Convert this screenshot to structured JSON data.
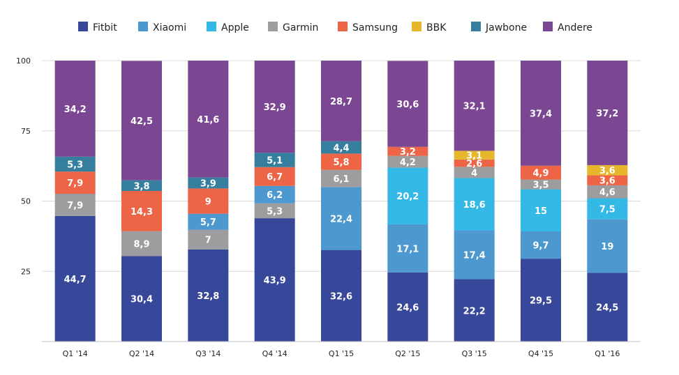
{
  "chart_data": {
    "type": "bar",
    "stacked": true,
    "categories": [
      "Q1 '14",
      "Q2 '14",
      "Q3 '14",
      "Q4 '14",
      "Q1 '15",
      "Q2 '15",
      "Q3 '15",
      "Q4 '15",
      "Q1 '16"
    ],
    "ylim": [
      0,
      100
    ],
    "yticks": [
      25,
      50,
      75,
      100
    ],
    "legend_position": "top",
    "series": [
      {
        "name": "Fitbit",
        "color": "#37489b",
        "values": [
          44.7,
          30.4,
          32.8,
          43.9,
          32.6,
          24.6,
          22.2,
          29.5,
          24.5
        ]
      },
      {
        "name": "Xiaomi",
        "color": "#4d98cf",
        "values": [
          null,
          null,
          null,
          null,
          22.4,
          17.1,
          17.4,
          9.7,
          19
        ]
      },
      {
        "name": "Apple",
        "color": "#34b8e6",
        "values": [
          null,
          null,
          null,
          null,
          null,
          20.2,
          18.6,
          15,
          7.5
        ]
      },
      {
        "name": "Garmin",
        "color": "#9d9c9e",
        "values": [
          7.9,
          8.9,
          7,
          5.3,
          6.1,
          4.2,
          4,
          3.5,
          4.6
        ]
      },
      {
        "name": "Samsung",
        "color": "#ed6546",
        "values": [
          7.9,
          14.3,
          9,
          6.7,
          5.8,
          3.2,
          2.6,
          4.9,
          3.6
        ]
      },
      {
        "name": "BBK",
        "color": "#e6b62b",
        "values": [
          null,
          null,
          null,
          null,
          null,
          null,
          3.1,
          null,
          3.6
        ]
      },
      {
        "name": "Jawbone",
        "color": "#357e9e",
        "values": [
          5.3,
          3.8,
          3.9,
          5.1,
          4.4,
          null,
          null,
          null,
          null
        ]
      },
      {
        "name": "Andere",
        "color": "#7b4793",
        "values": [
          34.2,
          42.5,
          41.6,
          32.9,
          28.7,
          30.6,
          32.1,
          37.4,
          37.2
        ]
      }
    ],
    "extra_segments": [
      {
        "series": "Xiaomi",
        "category": "Q3 '14",
        "value": 5.7,
        "base_series": "Garmin"
      },
      {
        "series": "Xiaomi",
        "category": "Q4 '14",
        "value": 6.2,
        "base_series": "Garmin"
      }
    ]
  }
}
